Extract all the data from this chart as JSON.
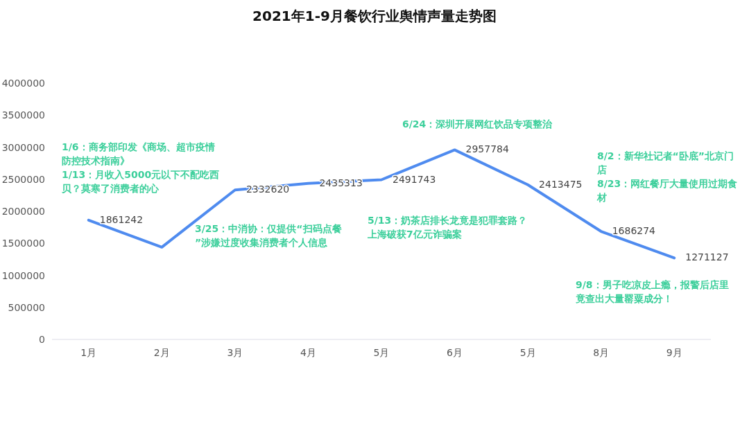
{
  "chart_data": {
    "type": "line",
    "title": "2021年1-9月餐饮行业舆情声量走势图",
    "categories": [
      "1月",
      "2月",
      "3月",
      "4月",
      "5月",
      "6月",
      "5月",
      "8月",
      "9月"
    ],
    "series": [
      {
        "color": "#4f8bef",
        "values": [
          1861242,
          1440000,
          2332620,
          2435313,
          2491743,
          2957784,
          2413475,
          1686274,
          1271127
        ],
        "value_labels": [
          "1861242",
          null,
          "2332620",
          "2435313",
          "2491743",
          "2957784",
          "2413475",
          "1686274",
          "1271127"
        ]
      }
    ],
    "ylim": [
      0,
      4000000
    ],
    "yticks": [
      0,
      500000,
      1000000,
      1500000,
      2000000,
      2500000,
      3000000,
      3500000,
      4000000
    ],
    "grid": false,
    "marker": "none",
    "line_style": "solid",
    "annotations": [
      "1/6：商务部印发《商场、超市疫情防控技术指南》",
      "1/13：月收入5000元以下不配吃西贝？莫寒了消费者的心",
      "3/25：中消协：仅提供“扫码点餐”涉嫌过度收集消费者个人信息",
      "5/13：奶茶店排长龙竟是犯罪套路？上海破获7亿元诈骗案",
      "6/24：深圳开展网红饮品专项整治",
      "8/2：新华社记者“卧底”北京门店",
      "8/23：网红餐厅大量使用过期食材",
      "9/8：男子吃凉皮上瘾，报警后店里竟查出大量罂粟成分！"
    ]
  }
}
